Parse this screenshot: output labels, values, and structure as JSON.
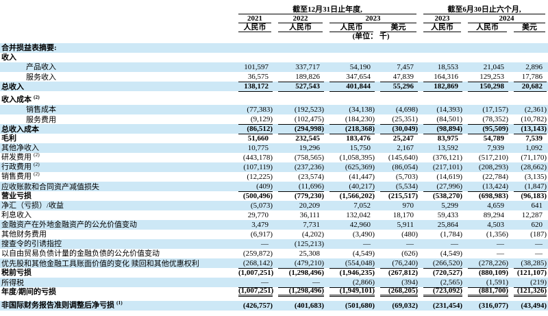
{
  "colors": {
    "stripe": "#cde8f6",
    "text": "#000000",
    "rule": "#000000"
  },
  "header": {
    "group1_title": "截至12月31日止年度,",
    "group2_title": "截至6月30日止六个月,",
    "years": [
      {
        "label": "2021",
        "span": 1
      },
      {
        "label": "2022",
        "span": 1
      },
      {
        "label": "2023",
        "span": 2
      },
      {
        "label": "2023",
        "span": 1
      },
      {
        "label": "2024",
        "span": 2
      }
    ],
    "currencies": [
      "人民币",
      "人民币",
      "人民币",
      "美元",
      "人民币",
      "人民币",
      "美元"
    ],
    "unit_note": "(单位： 千)"
  },
  "rows": [
    {
      "label": "合并损益表摘要:",
      "bold": true,
      "values": [
        "",
        "",
        "",
        "",
        "",
        "",
        ""
      ]
    },
    {
      "label": "收入",
      "bold": true,
      "values": [
        "",
        "",
        "",
        "",
        "",
        "",
        ""
      ]
    },
    {
      "label": "产品收入",
      "indent": true,
      "values": [
        "101,597",
        "337,717",
        "54,190",
        "7,457",
        "18,553",
        "21,045",
        "2,896"
      ]
    },
    {
      "label": "服务收入",
      "indent": true,
      "underline": "single",
      "values": [
        "36,575",
        "189,826",
        "347,654",
        "47,839",
        "164,316",
        "129,253",
        "17,786"
      ]
    },
    {
      "label": "总收入",
      "bold": true,
      "underline": "single",
      "gapAfter": true,
      "values": [
        "138,172",
        "527,543",
        "401,844",
        "55,296",
        "182,869",
        "150,298",
        "20,682"
      ]
    },
    {
      "label": "收入成本",
      "sup": "(2)",
      "bold": true,
      "values": [
        "",
        "",
        "",
        "",
        "",
        "",
        ""
      ]
    },
    {
      "label": "销售成本",
      "indent": true,
      "values": [
        "(77,383)",
        "(192,523)",
        "(34,138)",
        "(4,698)",
        "(14,393)",
        "(17,157)",
        "(2,361)"
      ]
    },
    {
      "label": "服务费用",
      "indent": true,
      "underline": "single",
      "values": [
        "(9,129)",
        "(102,475)",
        "(184,230)",
        "(25,351)",
        "(84,501)",
        "(78,352)",
        "(10,782)"
      ]
    },
    {
      "label": "总收入成本",
      "bold": true,
      "underline": "single",
      "values": [
        "(86,512)",
        "(294,998)",
        "(218,368)",
        "(30,049)",
        "(98,894)",
        "(95,509)",
        "(13,143)"
      ]
    },
    {
      "label": "毛利",
      "bold": true,
      "values": [
        "51,660",
        "232,545",
        "183,476",
        "25,247",
        "83,975",
        "54,789",
        "7,539"
      ]
    },
    {
      "label": "其他净收入",
      "values": [
        "10,775",
        "19,296",
        "15,750",
        "2,167",
        "13,592",
        "7,939",
        "1,092"
      ]
    },
    {
      "label": "研发费用",
      "sup": "(2)",
      "values": [
        "(443,178)",
        "(758,565)",
        "(1,058,395)",
        "(145,640)",
        "(376,121)",
        "(517,210)",
        "(71,170)"
      ]
    },
    {
      "label": "行政费用",
      "sup": "(2)",
      "values": [
        "(107,119)",
        "(237,236)",
        "(625,369)",
        "(86,054)",
        "(217,101)",
        "(208,293)",
        "(28,662)"
      ]
    },
    {
      "label": "销售费用",
      "sup": "(2)",
      "values": [
        "(12,225)",
        "(23,574)",
        "(41,447)",
        "(5,703)",
        "(14,619)",
        "(22,784)",
        "(3,135)"
      ]
    },
    {
      "label": "应收账款和合同资产减值损失",
      "underline": "single",
      "values": [
        "(409)",
        "(11,696)",
        "(40,217)",
        "(5,534)",
        "(27,996)",
        "(13,424)",
        "(1,847)"
      ]
    },
    {
      "label": "营业亏损",
      "bold": true,
      "values": [
        "(500,496)",
        "(779,230)",
        "(1,566,202)",
        "(215,517)",
        "(538,270)",
        "(698,983)",
        "(96,183)"
      ]
    },
    {
      "label": "净汇（亏损）/收益",
      "values": [
        "(5,073)",
        "20,209",
        "7,052",
        "970",
        "5,299",
        "4,659",
        "641"
      ]
    },
    {
      "label": "利息收入",
      "values": [
        "29,770",
        "36,111",
        "132,042",
        "18,170",
        "59,433",
        "89,294",
        "12,287"
      ]
    },
    {
      "label": "金融资产在外地金融资产的公允价值变动",
      "values": [
        "3,479",
        "7,731",
        "42,960",
        "5,911",
        "25,864",
        "4,503",
        "620"
      ]
    },
    {
      "label": "其他财务费用",
      "values": [
        "(6,917)",
        "(4,202)",
        "(3,490)",
        "(480)",
        "(1,784)",
        "(1,356)",
        "(187)"
      ]
    },
    {
      "label": "搜查令的引诱指控",
      "values": [
        "—",
        "(125,213)",
        "—",
        "—",
        "—",
        "—",
        "—"
      ]
    },
    {
      "label": "以自由贸易负债计量的金融负债的公允价值变动",
      "values": [
        "(259,872)",
        "25,308",
        "(4,549)",
        "(626)",
        "(4,549)",
        "—",
        "—"
      ]
    },
    {
      "label": "优先股和其他金融工具账面价值的变化 赎回和其他优惠权利",
      "underline": "single",
      "values": [
        "(268,142)",
        "(479,210)",
        "(554,048)",
        "(76,240)",
        "(266,520)",
        "(278,226)",
        "(38,285)"
      ]
    },
    {
      "label": "税前亏损",
      "bold": true,
      "values": [
        "(1,007,251)",
        "(1,298,496)",
        "(1,946,235)",
        "(267,812)",
        "(720,527)",
        "(880,109)",
        "(121,107)"
      ]
    },
    {
      "label": "所得税",
      "underline": "single",
      "values": [
        "—",
        "—",
        "(2,866)",
        "(394)",
        "(2,565)",
        "(1,591)",
        "(219)"
      ]
    },
    {
      "label": "年度/期间的亏损",
      "bold": true,
      "underline": "double",
      "gapAfter": true,
      "values": [
        "(1,007,251)",
        "(1,298,496)",
        "(1,949,101)",
        "(268,205)",
        "(723,092)",
        "(881,700)",
        "(121,326)"
      ]
    },
    {
      "label": "非国际财务报告准则调整后净亏损",
      "sup": "(1)",
      "bold": true,
      "values": [
        "(426,757)",
        "(401,683)",
        "(501,680)",
        "(69,032)",
        "(231,454)",
        "(316,077)",
        "(43,494)"
      ]
    }
  ]
}
